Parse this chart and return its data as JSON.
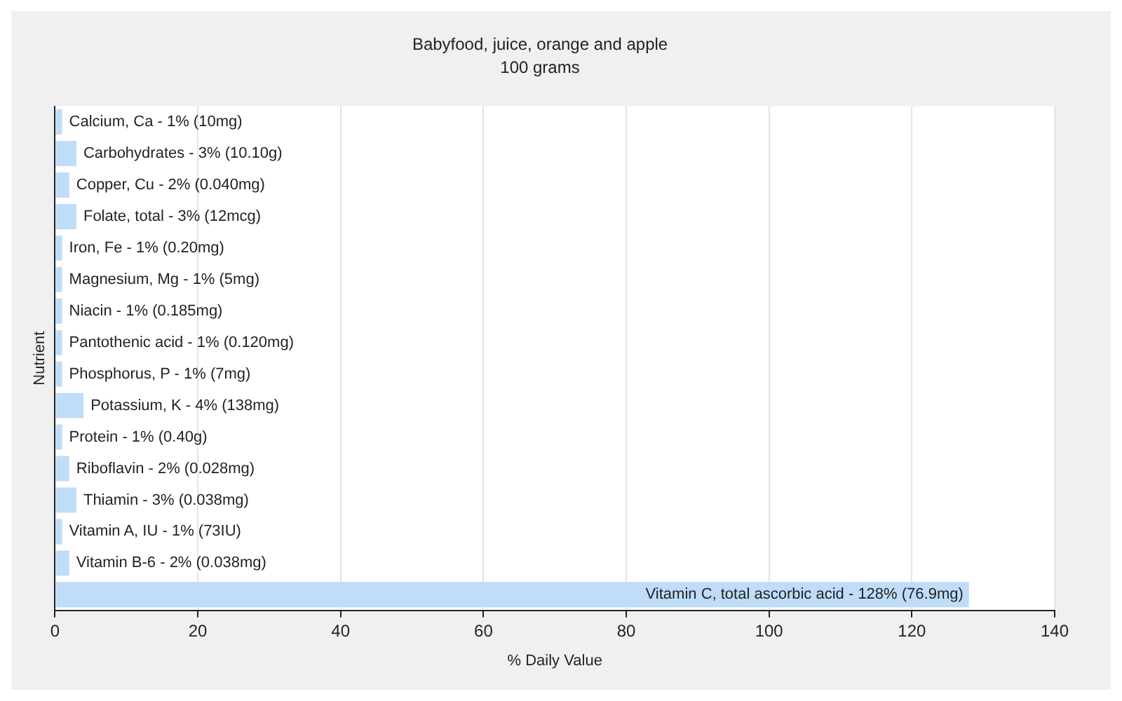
{
  "chart_data": {
    "type": "bar",
    "orientation": "horizontal",
    "title": "Babyfood, juice, orange and apple",
    "subtitle": "100 grams",
    "xlabel": "% Daily Value",
    "ylabel": "Nutrient",
    "categories": [
      "Calcium, Ca - 1% (10mg)",
      "Carbohydrates - 3% (10.10g)",
      "Copper, Cu - 2% (0.040mg)",
      "Folate, total - 3% (12mcg)",
      "Iron, Fe - 1% (0.20mg)",
      "Magnesium, Mg - 1% (5mg)",
      "Niacin - 1% (0.185mg)",
      "Pantothenic acid - 1% (0.120mg)",
      "Phosphorus, P - 1% (7mg)",
      "Potassium, K - 4% (138mg)",
      "Protein - 1% (0.40g)",
      "Riboflavin - 2% (0.028mg)",
      "Thiamin - 3% (0.038mg)",
      "Vitamin A, IU - 1% (73IU)",
      "Vitamin B-6 - 2% (0.038mg)",
      "Vitamin C, total ascorbic acid - 128% (76.9mg)"
    ],
    "values": [
      1,
      3,
      2,
      3,
      1,
      1,
      1,
      1,
      1,
      4,
      1,
      2,
      3,
      1,
      2,
      128
    ],
    "color": "#bfdcf9",
    "xlim": [
      0,
      140
    ],
    "xticks": [
      0,
      20,
      40,
      60,
      80,
      100,
      120,
      140
    ],
    "grid": "x",
    "tick_labels": "x",
    "legend": false
  }
}
